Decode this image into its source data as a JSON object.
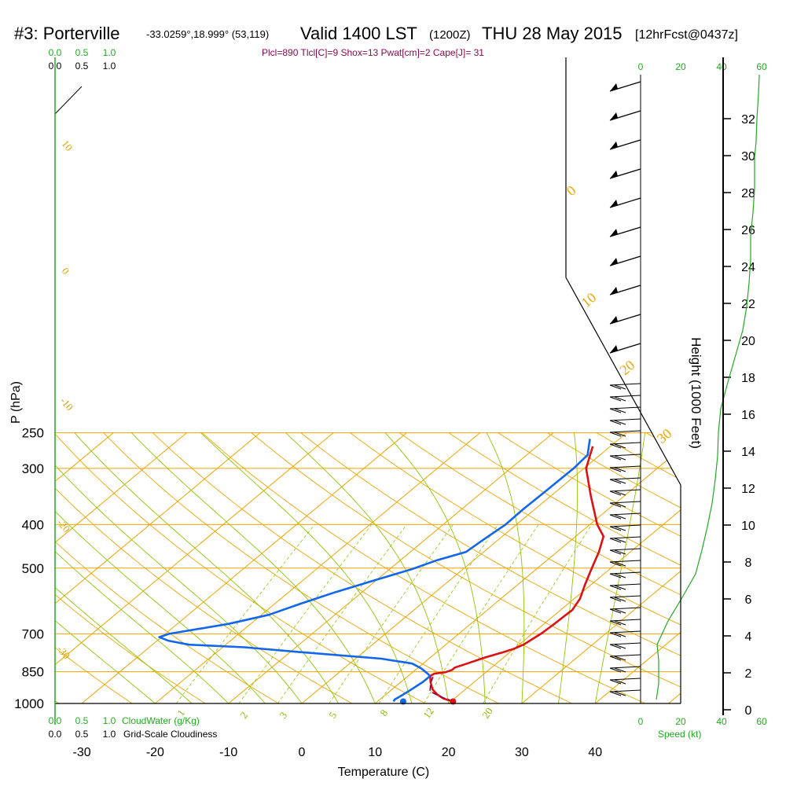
{
  "header": {
    "station": "#3: Porterville",
    "coords": "-33.0259°,18.999° (53,119)",
    "valid": "Valid 1400 LST",
    "utc": "(1200Z)",
    "date": "THU 28 May 2015",
    "forecast": "[12hrFcst@0437z]",
    "params": "Plcl=890 Tlcl[C]=9 Shox=13 Pwat[cm]=2 Cape[J]= 31"
  },
  "colors": {
    "temperature": "#dd1111",
    "dewpoint": "#1166ee",
    "isobar": "#f0a500",
    "dry_adiabat": "#8cc800",
    "height_curve": "#22aa22",
    "parcel": "#880044"
  },
  "chart_data": {
    "type": "line",
    "title": "#3: Porterville Valid 1400 LST THU 28 May 2015",
    "ylabel": "P (hPa)",
    "xlabel": "Temperature (C)",
    "y_scale": "log",
    "ylim": [
      1000,
      250
    ],
    "xlim": [
      -33,
      45
    ],
    "pressure_ticks": [
      "250",
      "300",
      "400",
      "500",
      "700",
      "850",
      "1000"
    ],
    "temperature_ticks": [
      "-30",
      "-20",
      "-10",
      "0",
      "10",
      "20",
      "30",
      "40"
    ],
    "height_label": "Height (1000 Feet)",
    "height_ticks": [
      "0",
      "2",
      "4",
      "6",
      "8",
      "10",
      "12",
      "14",
      "16",
      "18",
      "20",
      "22",
      "24",
      "26",
      "28",
      "30",
      "32"
    ],
    "cloud_water_label": "CloudWater (g/Kg)",
    "cloud_water_ticks": [
      "0.0",
      "0.5",
      "1.0"
    ],
    "cloudiness_label": "Grid-Scale Cloudiness",
    "cloudiness_ticks": [
      "0.0",
      "0.5",
      "1.0"
    ],
    "speed_label": "Speed (kt)",
    "speed_ticks": [
      "0",
      "20",
      "40",
      "60"
    ],
    "isotherm_labels": [
      "10",
      "0",
      "-10",
      "-20",
      "-30"
    ],
    "theta_labels": [
      "0",
      "10",
      "20",
      "30"
    ],
    "mixing_ratio_labels": [
      "1",
      "2",
      "3",
      "5",
      "8",
      "12",
      "20"
    ],
    "series": [
      {
        "name": "Temperature",
        "points": [
          [
            20.3,
            990
          ],
          [
            18.5,
            975
          ],
          [
            17,
            955
          ],
          [
            15.5,
            930
          ],
          [
            14,
            895
          ],
          [
            13,
            868
          ],
          [
            13.2,
            858
          ],
          [
            14.5,
            852
          ],
          [
            15,
            842
          ],
          [
            15,
            832
          ],
          [
            16,
            815
          ],
          [
            17.5,
            790
          ],
          [
            19,
            770
          ],
          [
            20,
            755
          ],
          [
            20.6,
            740
          ],
          [
            20.9,
            720
          ],
          [
            21.2,
            700
          ],
          [
            21.4,
            670
          ],
          [
            21.5,
            640
          ],
          [
            21.6,
            620
          ],
          [
            20.8,
            585
          ],
          [
            19.2,
            545
          ],
          [
            17.6,
            505
          ],
          [
            15.7,
            460
          ],
          [
            13.8,
            425
          ],
          [
            11,
            400
          ],
          [
            5.4,
            345
          ],
          [
            0.3,
            300
          ],
          [
            -2.4,
            268
          ]
        ]
      },
      {
        "name": "Dewpoint",
        "points": [
          [
            12.2,
            990
          ],
          [
            12,
            980
          ],
          [
            12.3,
            960
          ],
          [
            12.6,
            935
          ],
          [
            13,
            895
          ],
          [
            13,
            870
          ],
          [
            12.4,
            860
          ],
          [
            11.8,
            852
          ],
          [
            10.5,
            835
          ],
          [
            8.5,
            815
          ],
          [
            3.5,
            795
          ],
          [
            -8,
            770
          ],
          [
            -17,
            750
          ],
          [
            -25,
            740
          ],
          [
            -28.5,
            725
          ],
          [
            -30.3,
            712
          ],
          [
            -29.5,
            700
          ],
          [
            -23,
            665
          ],
          [
            -19,
            635
          ],
          [
            -16.5,
            600
          ],
          [
            -13.6,
            565
          ],
          [
            -10,
            530
          ],
          [
            -7,
            503
          ],
          [
            -5,
            480
          ],
          [
            -2.4,
            460
          ],
          [
            -2,
            430
          ],
          [
            -1.5,
            400
          ],
          [
            -1.6,
            370
          ],
          [
            -1.5,
            340
          ],
          [
            -1.4,
            300
          ],
          [
            -1.7,
            280
          ],
          [
            -4,
            258
          ]
        ]
      },
      {
        "name": "Parcel",
        "points": [
          [
            20.3,
            990
          ],
          [
            18,
            968
          ],
          [
            15.5,
            940
          ],
          [
            14.2,
            900
          ],
          [
            13.6,
            875
          ],
          [
            13.4,
            862
          ]
        ]
      }
    ],
    "dew_surface_marker": [
      13.5,
      990
    ],
    "temp_surface_marker": [
      20.3,
      990
    ]
  }
}
